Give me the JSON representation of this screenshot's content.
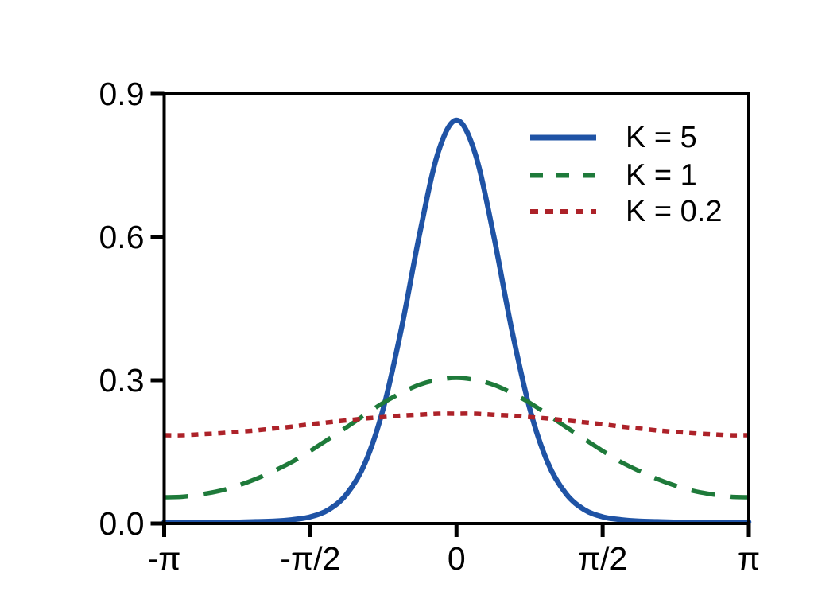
{
  "chart_data": {
    "type": "line",
    "title": "",
    "xlabel": "",
    "ylabel": "",
    "x_unit": "radians (multiples of pi)",
    "xlim_pi_units": [
      -1,
      1
    ],
    "ylim": [
      0,
      0.9
    ],
    "grid": false,
    "frame": "full box, ticks outside bottom and left",
    "x_tick_labels": [
      "-π",
      "-π/2",
      "0",
      "π/2",
      "π"
    ],
    "x_tick_values_pi_units": [
      -1,
      -0.5,
      0,
      0.5,
      1
    ],
    "y_tick_labels": [
      "0.0",
      "0.3",
      "0.6",
      "0.9"
    ],
    "y_tick_values": [
      0,
      0.3,
      0.6,
      0.9
    ],
    "legend": {
      "position": "upper right inside plot",
      "border": false,
      "entries": [
        "K = 5",
        "K = 1",
        "K = 0.2"
      ]
    },
    "x_pi_units": [
      -1,
      -0.9375,
      -0.875,
      -0.8125,
      -0.75,
      -0.6875,
      -0.625,
      -0.5625,
      -0.5,
      -0.4375,
      -0.375,
      -0.3125,
      -0.25,
      -0.1875,
      -0.125,
      -0.0625,
      0,
      0.0625,
      0.125,
      0.1875,
      0.25,
      0.3125,
      0.375,
      0.4375,
      0.5,
      0.5625,
      0.625,
      0.6875,
      0.75,
      0.8125,
      0.875,
      0.9375,
      1
    ],
    "series": [
      {
        "name": "K = 5",
        "color": "#1f53a5",
        "linestyle": "solid",
        "peak_value": 0.845,
        "values": [
          0.003,
          0.003,
          0.003,
          0.003,
          0.003,
          0.004,
          0.005,
          0.008,
          0.014,
          0.029,
          0.062,
          0.127,
          0.242,
          0.411,
          0.61,
          0.778,
          0.845,
          0.778,
          0.61,
          0.411,
          0.242,
          0.127,
          0.062,
          0.029,
          0.014,
          0.008,
          0.005,
          0.004,
          0.003,
          0.003,
          0.003,
          0.003,
          0.003
        ]
      },
      {
        "name": "K = 1",
        "color": "#1e7a3a",
        "linestyle": "dashed",
        "peak_value": 0.305,
        "values": [
          0.055,
          0.056,
          0.061,
          0.068,
          0.079,
          0.093,
          0.11,
          0.129,
          0.152,
          0.177,
          0.202,
          0.228,
          0.253,
          0.274,
          0.291,
          0.301,
          0.305,
          0.301,
          0.291,
          0.274,
          0.253,
          0.228,
          0.202,
          0.177,
          0.152,
          0.129,
          0.11,
          0.093,
          0.079,
          0.068,
          0.061,
          0.056,
          0.055
        ]
      },
      {
        "name": "K = 0.2",
        "color": "#ad2229",
        "linestyle": "dotted",
        "peak_value": 0.23,
        "values": [
          0.185,
          0.185,
          0.187,
          0.189,
          0.192,
          0.195,
          0.199,
          0.203,
          0.208,
          0.212,
          0.216,
          0.22,
          0.223,
          0.226,
          0.228,
          0.23,
          0.23,
          0.23,
          0.228,
          0.226,
          0.223,
          0.22,
          0.216,
          0.212,
          0.208,
          0.203,
          0.199,
          0.195,
          0.192,
          0.189,
          0.187,
          0.185,
          0.185
        ]
      }
    ]
  },
  "colors": {
    "background": "#ffffff",
    "axis": "#000000",
    "text": "#000000"
  }
}
